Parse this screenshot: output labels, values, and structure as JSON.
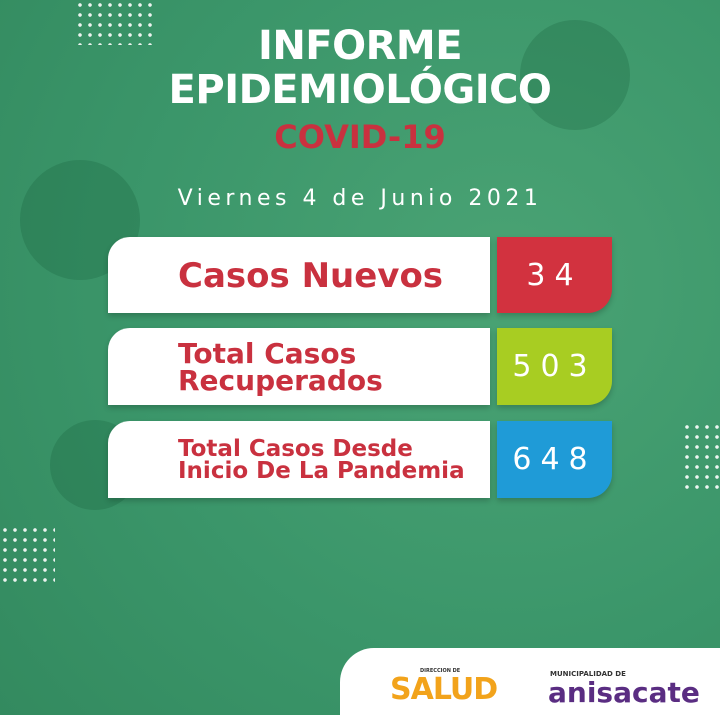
{
  "header": {
    "title_lines": [
      "INFORME",
      "EPIDEMIOLÓGICO"
    ],
    "subtitle": "COVID-19",
    "date": "Viernes 4 de Junio 2021"
  },
  "rows": [
    {
      "label_lines": [
        "Casos Nuevos"
      ],
      "value": 34
    },
    {
      "label_lines": [
        "Total Casos",
        "Recuperados"
      ],
      "value": 503
    },
    {
      "label_lines": [
        "Total Casos Desde",
        "Inicio De La Pandemia"
      ],
      "value": 648
    }
  ],
  "footer": {
    "salud_prefix": "DIRECCION DE",
    "salud": "SALUD",
    "municipio_prefix": "MUNICIPALIDAD DE",
    "municipio": "anisacate"
  }
}
